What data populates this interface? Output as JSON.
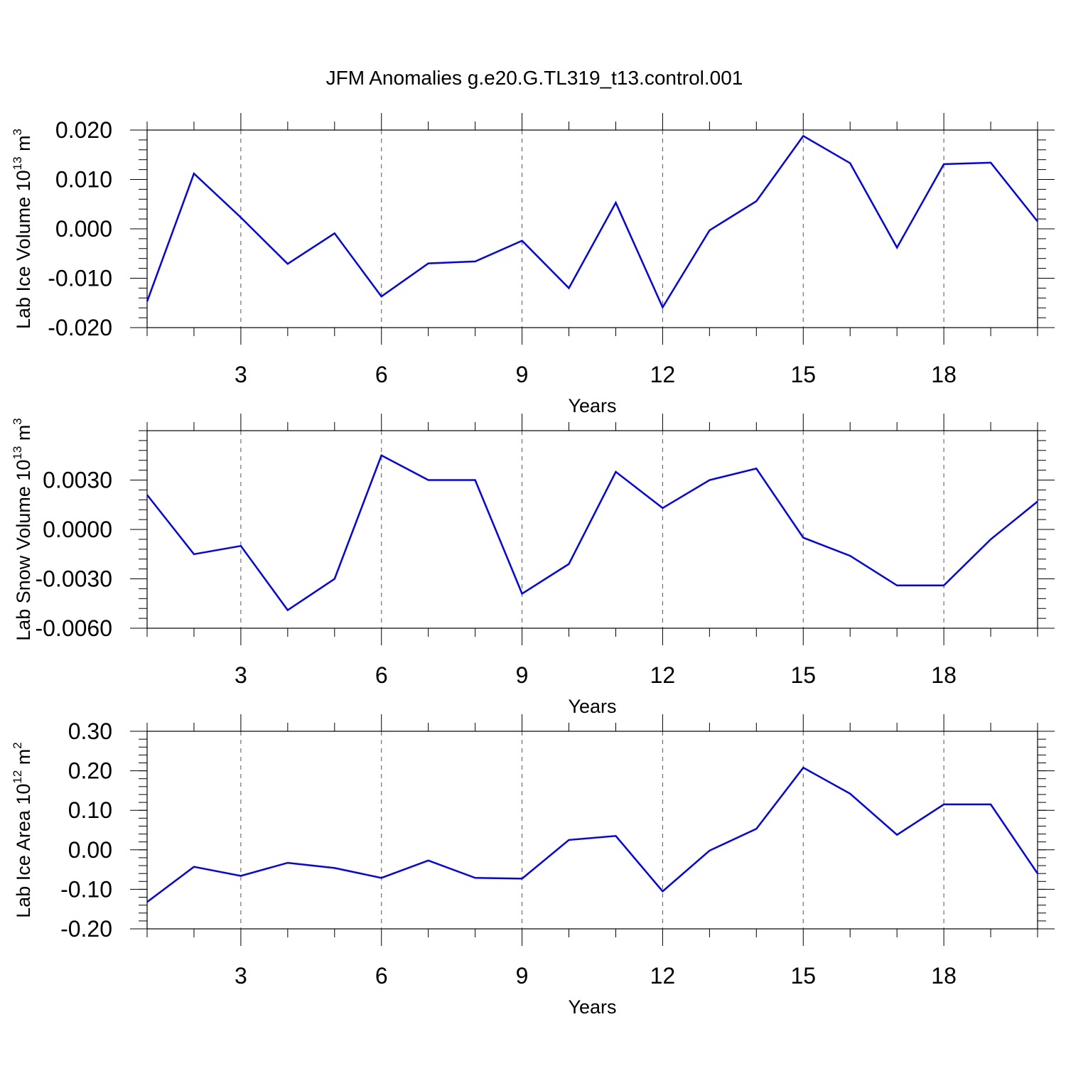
{
  "title": "JFM Anomalies g.e20.G.TL319_t13.control.001",
  "line_color": "#0000ff",
  "chart_data": [
    {
      "type": "line",
      "title": "JFM Anomalies g.e20.G.TL319_t13.control.001",
      "xlabel": "Years",
      "ylabel": {
        "base": "Lab Ice Volume 10",
        "exp1": "13",
        "unit": " m",
        "exp2": "3"
      },
      "xlim": [
        1,
        20
      ],
      "ylim": [
        -0.02,
        0.02
      ],
      "xticks": [
        3,
        6,
        9,
        12,
        15,
        18
      ],
      "yticks": [
        -0.02,
        -0.01,
        0.0,
        0.01,
        0.02
      ],
      "ytick_labels": [
        "-0.020",
        "-0.010",
        "0.000",
        "0.010",
        "0.020"
      ],
      "x": [
        1,
        2,
        3,
        4,
        5,
        6,
        7,
        8,
        9,
        10,
        11,
        12,
        13,
        14,
        15,
        16,
        17,
        18,
        19,
        20
      ],
      "values": [
        -0.0147,
        0.0112,
        0.0023,
        -0.0071,
        -0.0009,
        -0.0137,
        -0.007,
        -0.0066,
        -0.0024,
        -0.012,
        0.0053,
        -0.0159,
        -0.0003,
        0.0056,
        0.0188,
        0.0133,
        -0.0038,
        0.0131,
        0.0134,
        0.0015
      ]
    },
    {
      "type": "line",
      "xlabel": "Years",
      "ylabel": {
        "base": "Lab Snow Volume 10",
        "exp1": "13",
        "unit": " m",
        "exp2": "3"
      },
      "xlim": [
        1,
        20
      ],
      "ylim": [
        -0.006,
        0.006
      ],
      "xticks": [
        3,
        6,
        9,
        12,
        15,
        18
      ],
      "yticks": [
        -0.006,
        -0.003,
        0.0,
        0.003
      ],
      "ytick_labels": [
        "-0.0060",
        "-0.0030",
        "0.0000",
        "0.0030"
      ],
      "x": [
        1,
        2,
        3,
        4,
        5,
        6,
        7,
        8,
        9,
        10,
        11,
        12,
        13,
        14,
        15,
        16,
        17,
        18,
        19,
        20
      ],
      "values": [
        0.0021,
        -0.0015,
        -0.001,
        -0.0049,
        -0.003,
        0.0045,
        0.003,
        0.003,
        -0.0039,
        -0.0021,
        0.0035,
        0.0013,
        0.003,
        0.0037,
        -0.0005,
        -0.0016,
        -0.0034,
        -0.0034,
        -0.0006,
        0.0017
      ]
    },
    {
      "type": "line",
      "xlabel": "Years",
      "ylabel": {
        "base": "Lab Ice Area 10",
        "exp1": "12",
        "unit": " m",
        "exp2": "2"
      },
      "xlim": [
        1,
        20
      ],
      "ylim": [
        -0.2,
        0.3
      ],
      "xticks": [
        3,
        6,
        9,
        12,
        15,
        18
      ],
      "yticks": [
        -0.2,
        -0.1,
        0.0,
        0.1,
        0.2,
        0.3
      ],
      "ytick_labels": [
        "-0.20",
        "-0.10",
        "0.00",
        "0.10",
        "0.20",
        "0.30"
      ],
      "x": [
        1,
        2,
        3,
        4,
        5,
        6,
        7,
        8,
        9,
        10,
        11,
        12,
        13,
        14,
        15,
        16,
        17,
        18,
        19,
        20
      ],
      "values": [
        -0.132,
        -0.043,
        -0.066,
        -0.033,
        -0.046,
        -0.071,
        -0.027,
        -0.071,
        -0.073,
        0.025,
        0.035,
        -0.105,
        -0.002,
        0.053,
        0.208,
        0.142,
        0.038,
        0.115,
        0.115,
        -0.06
      ]
    }
  ]
}
